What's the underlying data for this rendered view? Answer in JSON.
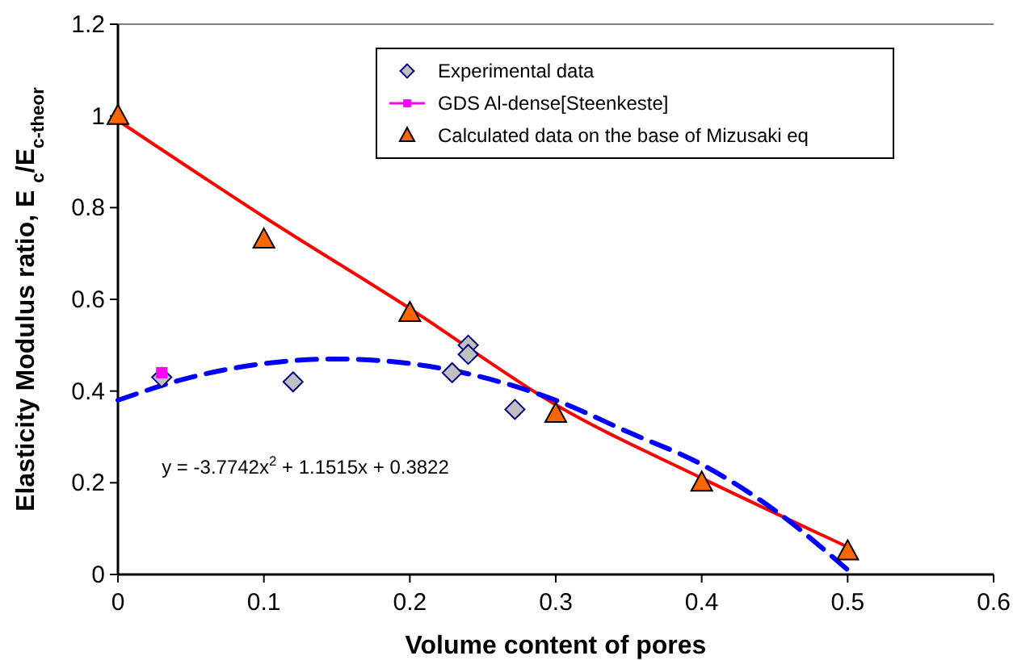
{
  "chart_data": {
    "type": "scatter",
    "xlabel": "Volume content of pores",
    "ylabel": "Elasticity Modulus ratio, E $_{c}$/E$_{c-theor}$",
    "xlim": [
      0,
      0.6
    ],
    "ylim": [
      0,
      1.2
    ],
    "xticks": [
      0,
      0.1,
      0.2,
      0.3,
      0.4,
      0.5,
      0.6
    ],
    "yticks": [
      0,
      0.2,
      0.4,
      0.6,
      0.8,
      1,
      1.2
    ],
    "legend": "top right",
    "grid": false,
    "annotations": [
      "y = -3.7742x$^{2}$ + 1.1515x + 0.3822"
    ],
    "series": [
      {
        "type": "line",
        "color": "#ff0000",
        "line_style": "solid",
        "marker": "none",
        "x": [
          0,
          0.1,
          0.2,
          0.3,
          0.4,
          0.5
        ],
        "values": [
          0.99,
          0.78,
          0.58,
          0.37,
          0.21,
          0.06
        ]
      },
      {
        "type": "line",
        "color": "#0000ff",
        "line_style": "dashed",
        "marker": "none",
        "x": [
          0,
          0.05,
          0.1,
          0.15,
          0.2,
          0.25,
          0.3,
          0.35,
          0.4,
          0.45,
          0.5
        ],
        "values": [
          0.38,
          0.43,
          0.46,
          0.47,
          0.46,
          0.43,
          0.38,
          0.31,
          0.24,
          0.14,
          0.01
        ]
      },
      {
        "name": "Experimental data",
        "color": "#c0c0c0",
        "marker": "diamond",
        "x": [
          0.03,
          0.12,
          0.229,
          0.24,
          0.24,
          0.272
        ],
        "values": [
          0.43,
          0.42,
          0.44,
          0.5,
          0.48,
          0.36
        ]
      },
      {
        "name": "GDS Al-dense[Steenkeste]",
        "type": "line",
        "color": "#ff00ff",
        "marker": "square",
        "line_style": "solid",
        "x": [
          0.03
        ],
        "values": [
          0.44
        ]
      },
      {
        "name": "Calculated data on the base of Mizusaki eq",
        "color": "#ff6600",
        "marker": "triangle",
        "x": [
          0,
          0.1,
          0.2,
          0.3,
          0.4,
          0.5
        ],
        "values": [
          1,
          0.73,
          0.57,
          0.35,
          0.2,
          0.05
        ]
      }
    ]
  }
}
